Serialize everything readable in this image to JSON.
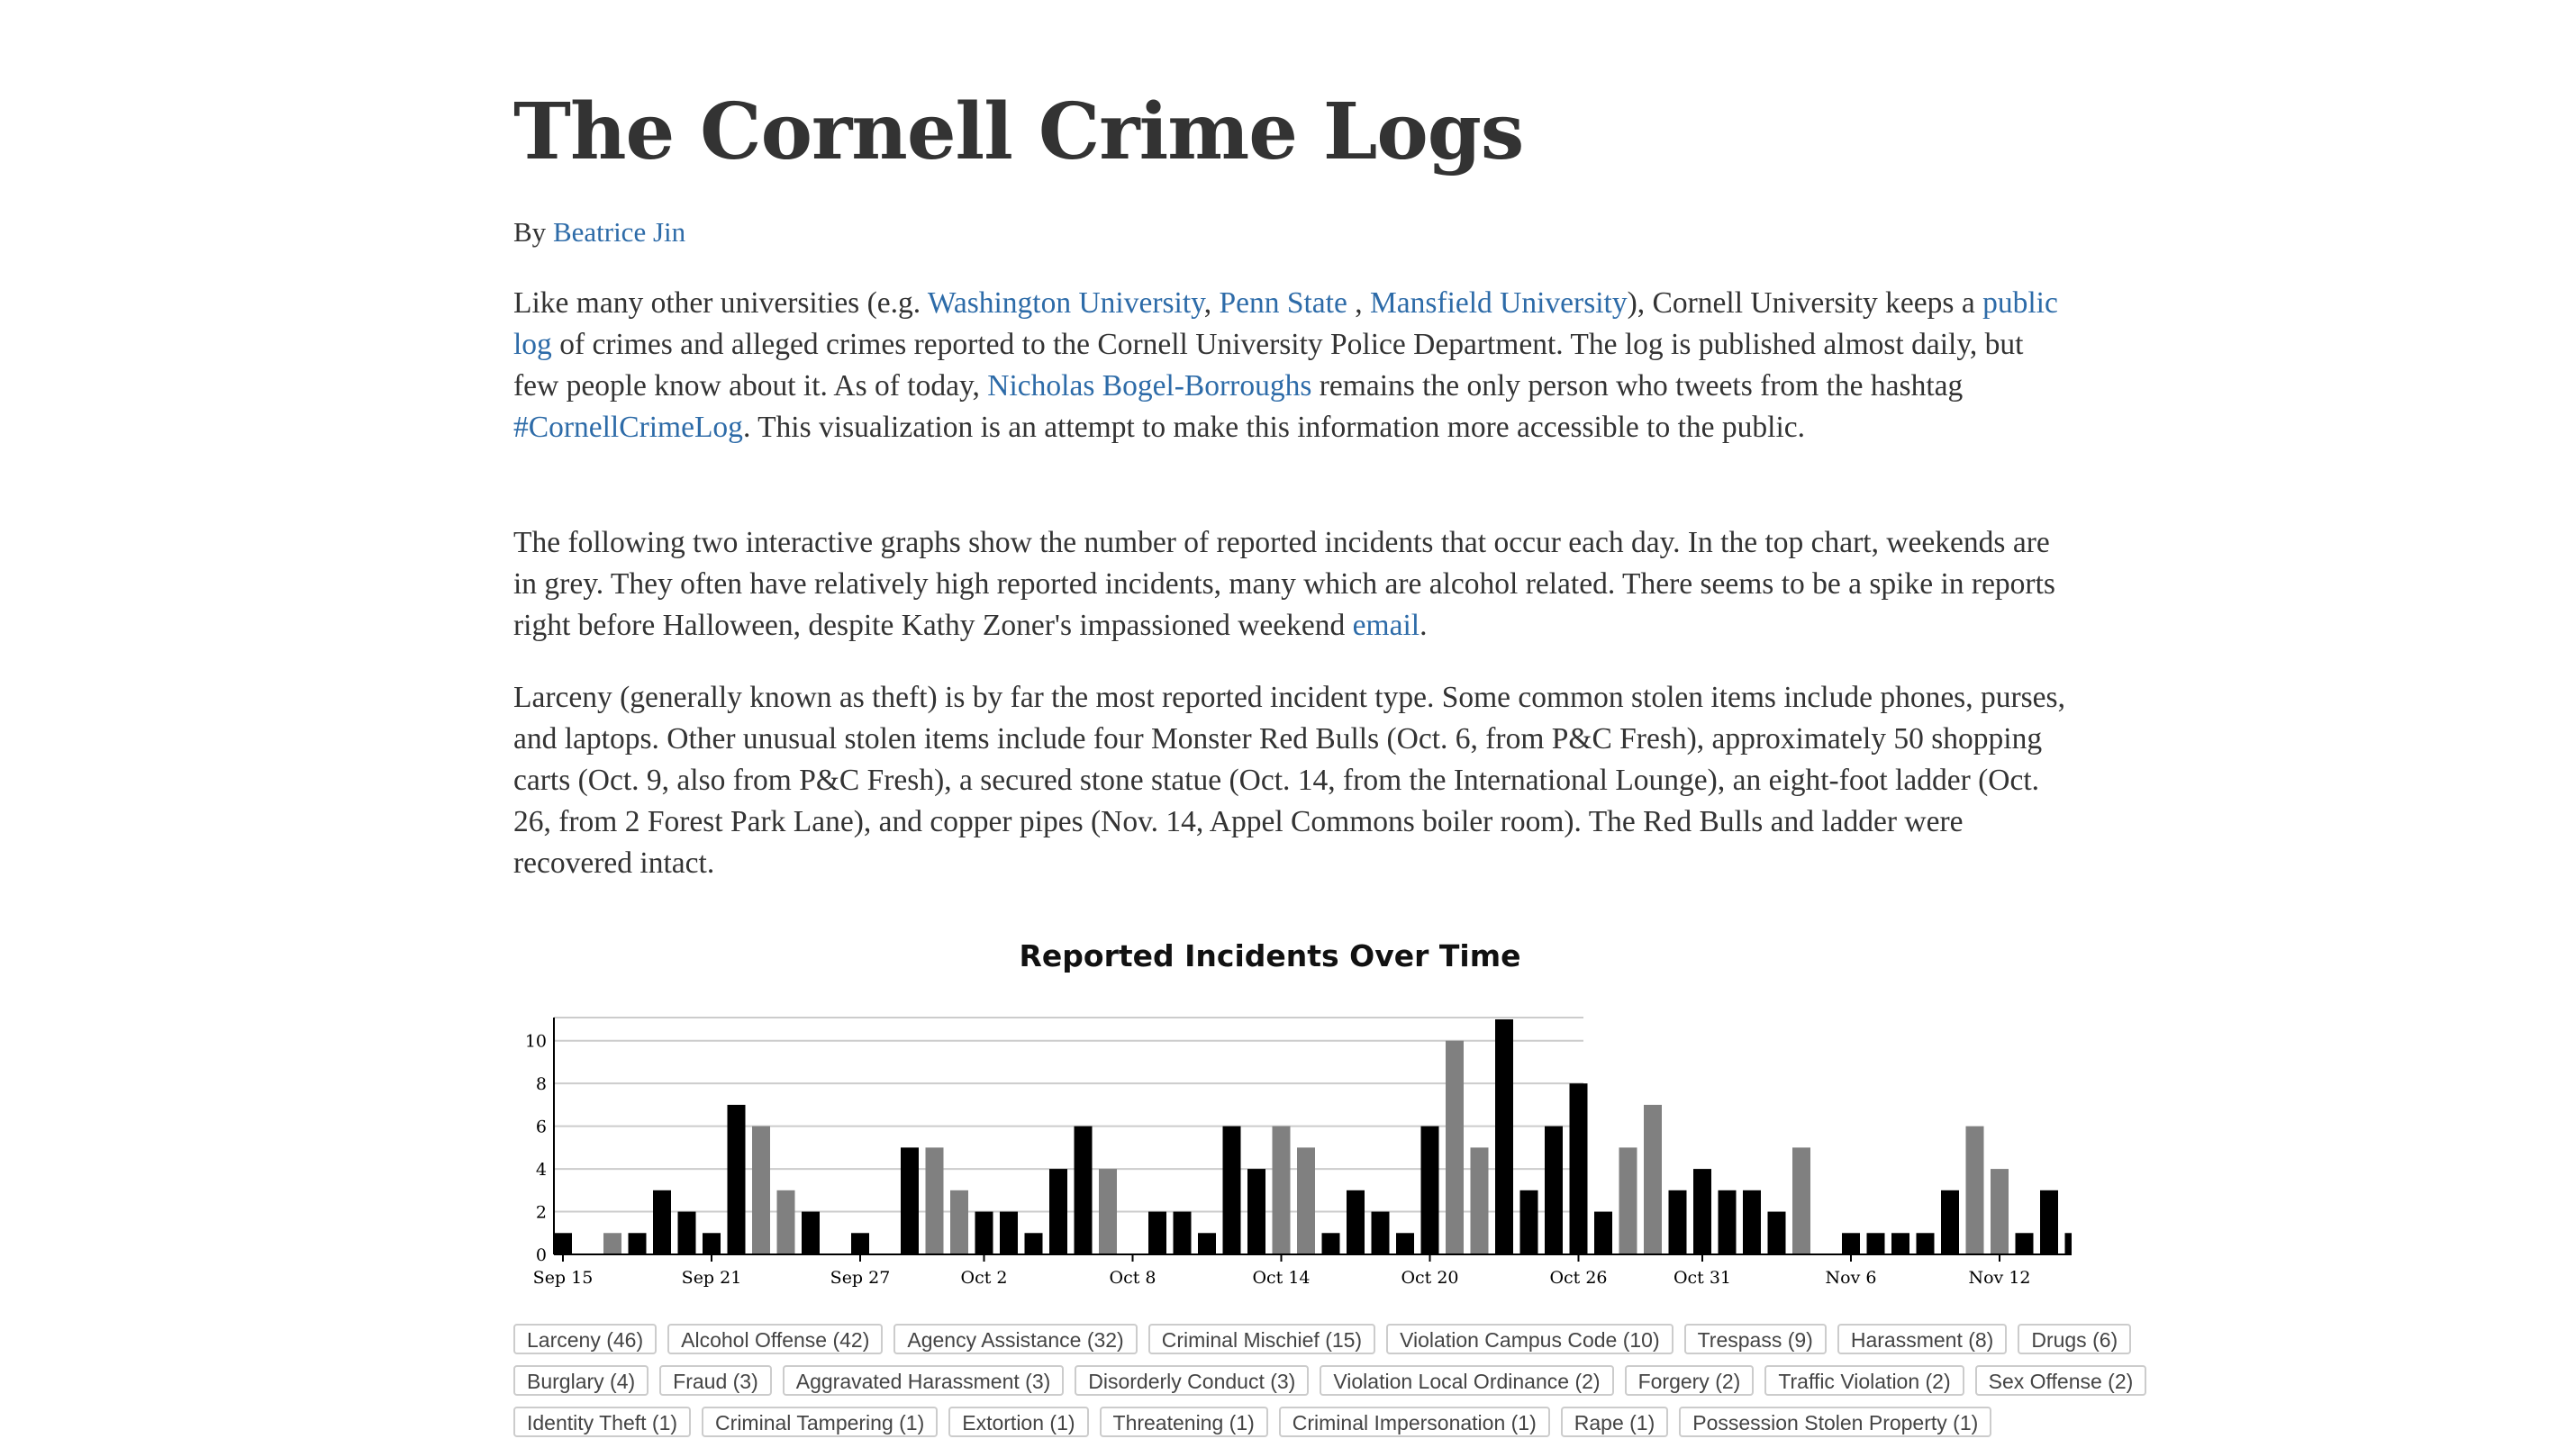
{
  "title": "The Cornell Crime Logs",
  "byline": {
    "prefix": "By ",
    "author": "Beatrice Jin"
  },
  "p1": {
    "t1": "Like many other universities (e.g. ",
    "l1": "Washington University",
    "t2": ", ",
    "l2": "Penn State",
    "t3": " , ",
    "l3": "Mansfield University",
    "t4": "), Cornell University keeps a ",
    "l4": "public log",
    "t5": " of crimes and alleged crimes reported to the Cornell University Police Department. The log is published almost daily, but few people know about it. As of today, ",
    "l5": "Nicholas Bogel-Borroughs",
    "t6": " remains the only person who tweets from the hashtag ",
    "l6": "#CornellCrimeLog",
    "t7": ". This visualization is an attempt to make this information more accessible to the public."
  },
  "p2": {
    "t1": "The following two interactive graphs show the number of reported incidents that occur each day. In the top chart, weekends are in grey. They often have relatively high reported incidents, many which are alcohol related. There seems to be a spike in reports right before Halloween, despite Kathy Zoner's impassioned weekend ",
    "l1": "email",
    "t2": "."
  },
  "p3": "Larceny (generally known as theft) is by far the most reported incident type. Some common stolen items include phones, purses, and laptops. Other unusual stolen items include four Monster Red Bulls (Oct. 6, from P&C Fresh), approximately 50 shopping carts (Oct. 9, also from P&C Fresh), a secured stone statue (Oct. 14, from the International Lounge), an eight-foot ladder (Oct. 26, from 2 Forest Park Lane), and copper pipes (Nov. 14, Appel Commons boiler room). The Red Bulls and ladder were recovered intact.",
  "chart_data": {
    "type": "bar",
    "title": "Reported Incidents Over Time",
    "xlabel": "",
    "ylabel": "",
    "ylim": [
      0,
      11
    ],
    "yticks": [
      0,
      2,
      4,
      6,
      8,
      10
    ],
    "grid": true,
    "start_date": "Sep 15",
    "xticks": [
      {
        "day": 0,
        "label": "Sep 15"
      },
      {
        "day": 6,
        "label": "Sep 21"
      },
      {
        "day": 12,
        "label": "Sep 27"
      },
      {
        "day": 17,
        "label": "Oct 2"
      },
      {
        "day": 23,
        "label": "Oct 8"
      },
      {
        "day": 29,
        "label": "Oct 14"
      },
      {
        "day": 35,
        "label": "Oct 20"
      },
      {
        "day": 41,
        "label": "Oct 26"
      },
      {
        "day": 46,
        "label": "Oct 31"
      },
      {
        "day": 52,
        "label": "Nov 6"
      },
      {
        "day": 58,
        "label": "Nov 12"
      }
    ],
    "values": [
      1,
      0,
      1,
      1,
      3,
      2,
      1,
      7,
      6,
      3,
      2,
      0,
      1,
      0,
      5,
      5,
      3,
      2,
      2,
      1,
      4,
      6,
      4,
      0,
      2,
      2,
      1,
      6,
      4,
      6,
      5,
      1,
      3,
      2,
      1,
      6,
      10,
      5,
      11,
      3,
      6,
      8,
      2,
      5,
      7,
      3,
      4,
      3,
      3,
      2,
      5,
      0,
      1,
      1,
      1,
      1,
      3,
      6,
      4,
      1,
      3,
      1
    ],
    "weekend": [
      0,
      0,
      1,
      0,
      0,
      0,
      0,
      0,
      1,
      1,
      0,
      0,
      0,
      0,
      0,
      1,
      1,
      0,
      0,
      0,
      0,
      0,
      1,
      1,
      0,
      0,
      0,
      0,
      0,
      1,
      1,
      0,
      0,
      0,
      0,
      0,
      1,
      1,
      0,
      0,
      0,
      0,
      0,
      1,
      1,
      0,
      0,
      0,
      0,
      0,
      1,
      1,
      0,
      0,
      0,
      0,
      0,
      1,
      1,
      0,
      0,
      0
    ],
    "colors": {
      "weekday": "#000000",
      "weekend": "#808080",
      "grid": "#cccccc",
      "axis": "#000000"
    }
  },
  "filters": [
    [
      "Larceny (46)",
      "Alcohol Offense (42)",
      "Agency Assistance (32)",
      "Criminal Mischief (15)",
      "Violation Campus Code (10)",
      "Trespass (9)",
      "Harassment (8)",
      "Drugs (6)"
    ],
    [
      "Burglary (4)",
      "Fraud (3)",
      "Aggravated Harassment (3)",
      "Disorderly Conduct (3)",
      "Violation Local Ordinance (2)",
      "Forgery (2)",
      "Traffic Violation (2)",
      "Sex Offense (2)"
    ],
    [
      "Identity Theft (1)",
      "Criminal Tampering (1)",
      "Extortion (1)",
      "Threatening (1)",
      "Criminal Impersonation (1)",
      "Rape (1)",
      "Possession Stolen Property (1)"
    ]
  ]
}
